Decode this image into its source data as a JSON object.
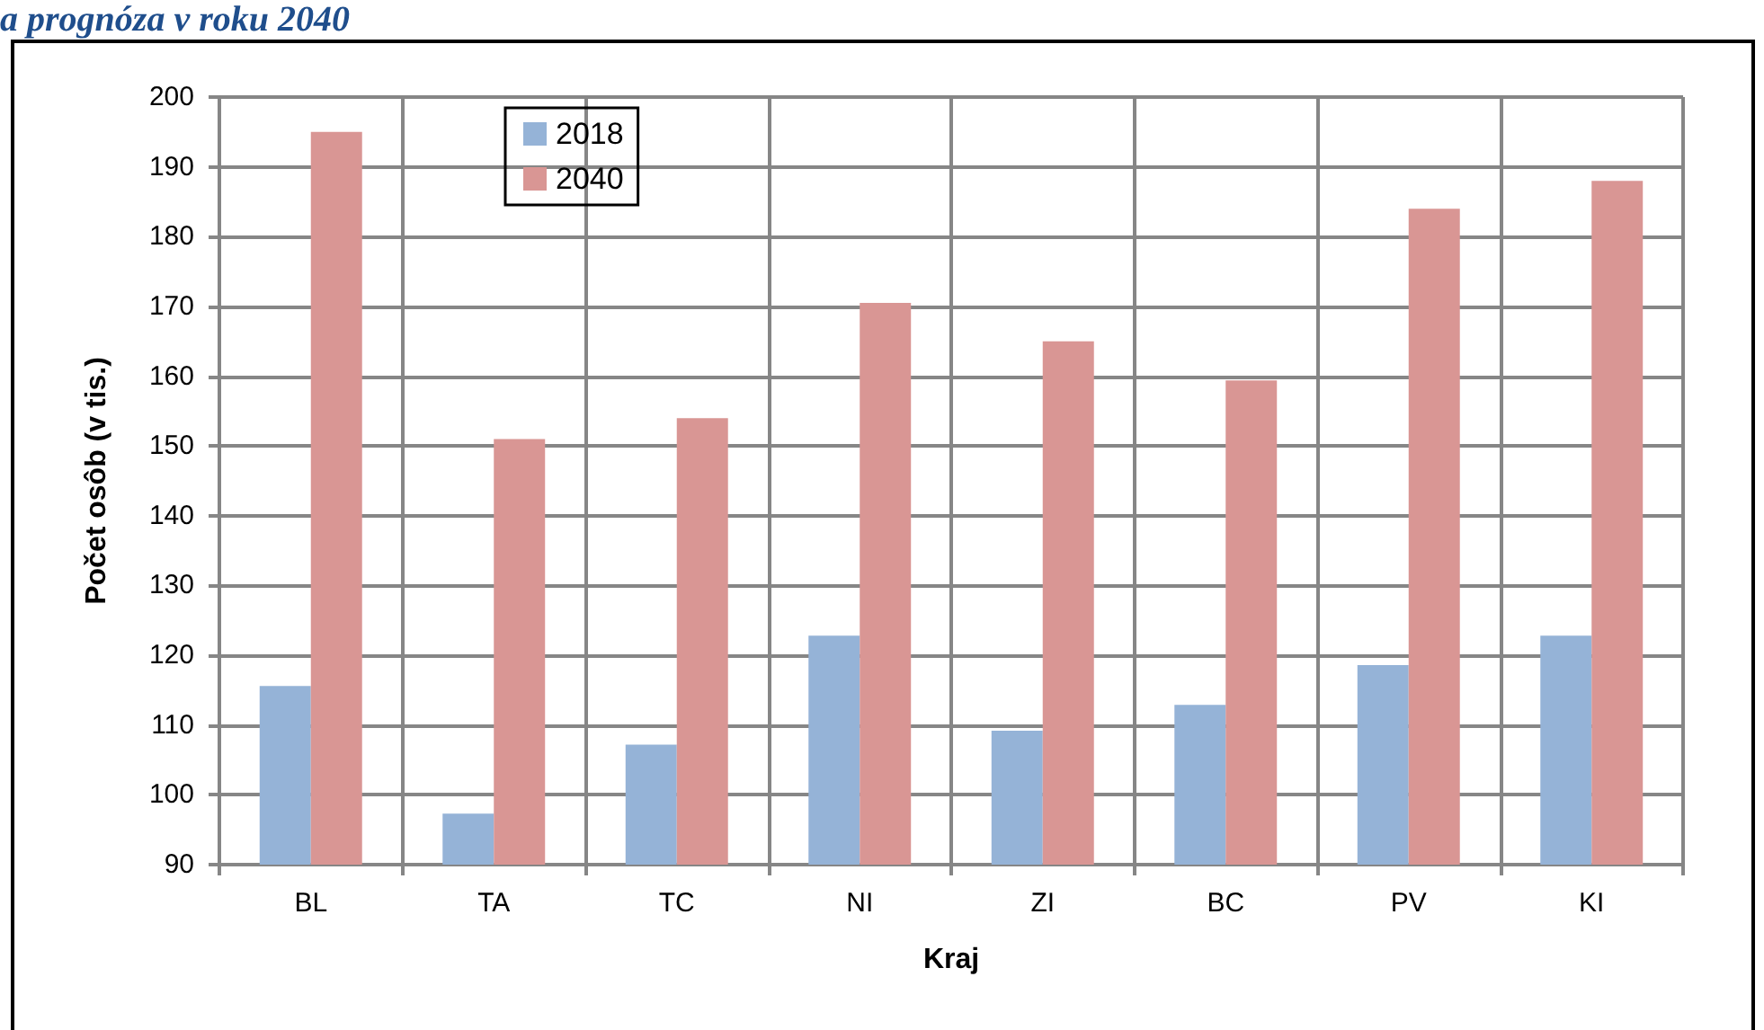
{
  "chart_data": {
    "type": "bar",
    "title": "a prognóza v roku 2040",
    "xlabel": "Kraj",
    "ylabel": "Počet osôb (v tis.)",
    "categories": [
      "BL",
      "TA",
      "TC",
      "NI",
      "ZI",
      "BC",
      "PV",
      "KI"
    ],
    "series": [
      {
        "name": "2018",
        "color": "#95b3d7",
        "values": [
          115.6,
          97.3,
          107.2,
          122.8,
          109.2,
          112.9,
          118.6,
          122.8
        ]
      },
      {
        "name": "2040",
        "color": "#d99694",
        "values": [
          195,
          151,
          154,
          170.5,
          165,
          159.4,
          184,
          188
        ]
      }
    ],
    "ylim": [
      90,
      200
    ],
    "yticks": [
      90,
      100,
      110,
      120,
      130,
      140,
      150,
      160,
      170,
      180,
      190,
      200
    ],
    "grid": true,
    "legend": "top left"
  }
}
